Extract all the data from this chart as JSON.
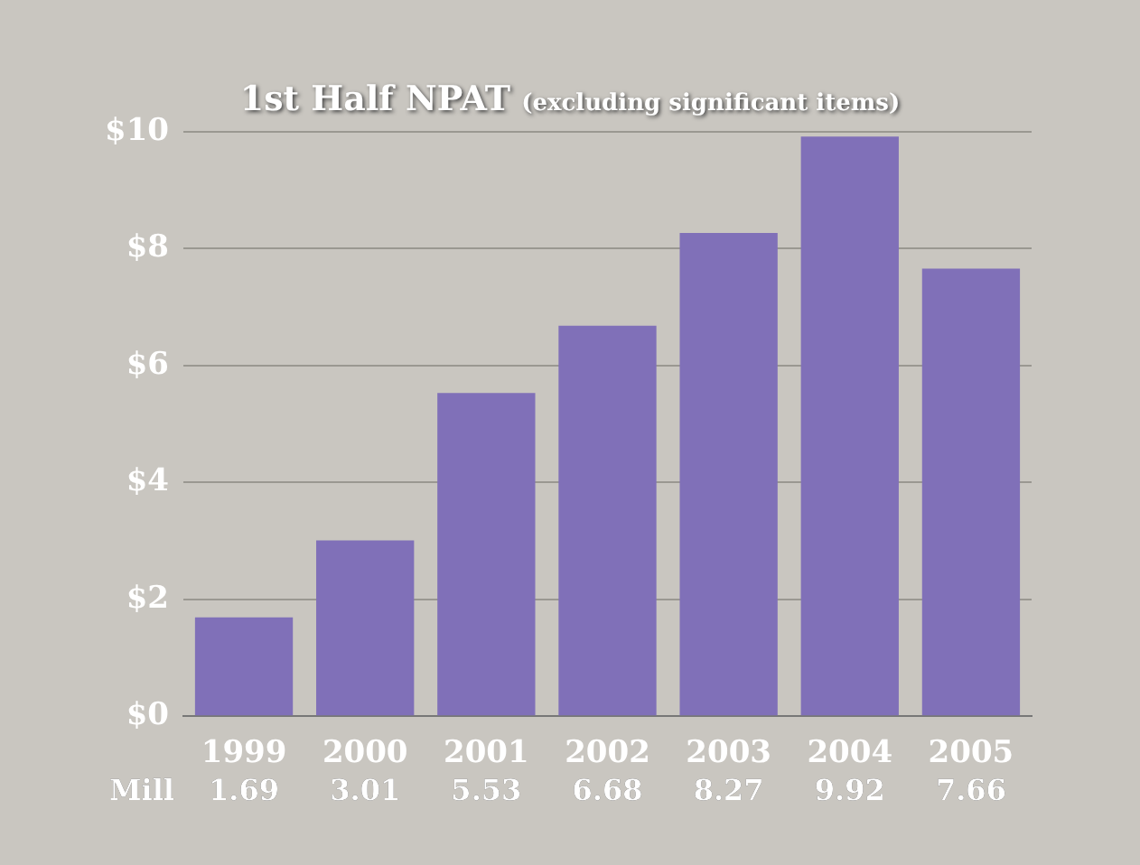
{
  "chart_data": {
    "type": "bar",
    "title": "1st Half NPAT",
    "subtitle": "(excluding significant items)",
    "categories": [
      "1999",
      "2000",
      "2001",
      "2002",
      "2003",
      "2004",
      "2005"
    ],
    "values": [
      1.69,
      3.01,
      5.53,
      6.68,
      8.27,
      9.92,
      7.66
    ],
    "color": "#8070b8",
    "ylim": [
      0,
      10
    ],
    "yticks": [
      {
        "value": 0,
        "label": "$0"
      },
      {
        "value": 2,
        "label": "$2"
      },
      {
        "value": 4,
        "label": "$4"
      },
      {
        "value": 6,
        "label": "$6"
      },
      {
        "value": 8,
        "label": "$8"
      },
      {
        "value": 10,
        "label": "$10"
      }
    ],
    "grid": "y",
    "data_labels": true,
    "annotations": [
      "Mill"
    ]
  }
}
